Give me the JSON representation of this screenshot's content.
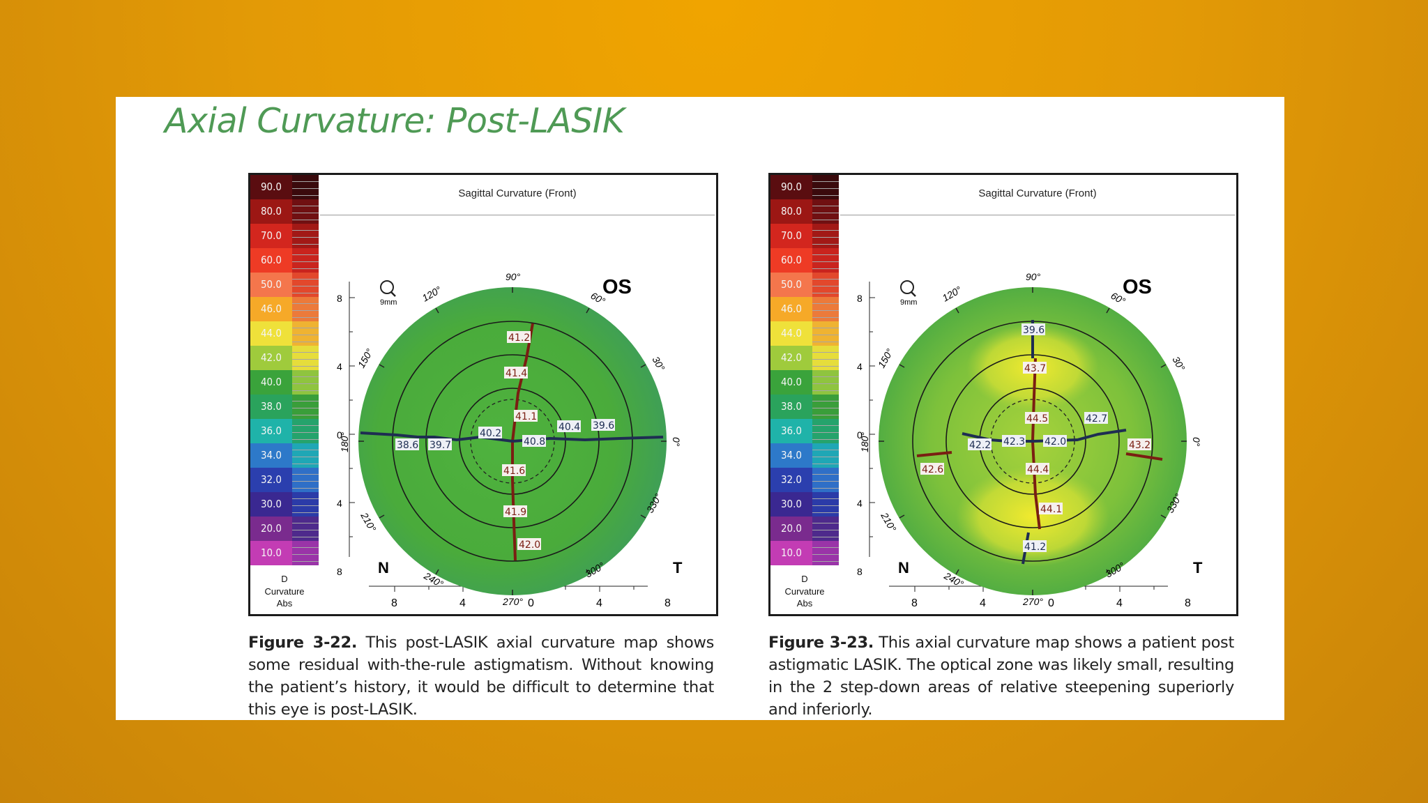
{
  "slide": {
    "title": "Axial Curvature: Post-LASIK"
  },
  "colors": {
    "background": "#e69c05",
    "title": "#4f9a55",
    "map_green": "#4caf3a",
    "meridian_red": "#7a1e12",
    "meridian_blue": "#1e2d52"
  },
  "scale": {
    "cells": [
      {
        "label": "90.0",
        "color": "#5a0d10"
      },
      {
        "label": "80.0",
        "color": "#9c1714"
      },
      {
        "label": "70.0",
        "color": "#d3261e"
      },
      {
        "label": "60.0",
        "color": "#ee3b25"
      },
      {
        "label": "50.0",
        "color": "#f4764c"
      },
      {
        "label": "46.0",
        "color": "#f6a928"
      },
      {
        "label": "44.0",
        "color": "#efe13a"
      },
      {
        "label": "42.0",
        "color": "#9fcb3c"
      },
      {
        "label": "40.0",
        "color": "#3aa33b"
      },
      {
        "label": "38.0",
        "color": "#2aa35c"
      },
      {
        "label": "36.0",
        "color": "#1fb3a9"
      },
      {
        "label": "34.0",
        "color": "#2d79c9"
      },
      {
        "label": "32.0",
        "color": "#2b3fae"
      },
      {
        "label": "30.0",
        "color": "#3a2891"
      },
      {
        "label": "20.0",
        "color": "#7a2b8e"
      },
      {
        "label": "10.0",
        "color": "#c33cb4"
      }
    ]
  },
  "figures": [
    {
      "header": "Sagittal Curvature (Front)",
      "unit": "D",
      "scale_caption": "Curvature",
      "scale_mode": "Abs",
      "eye": "OS",
      "nasal": "N",
      "temporal": "T",
      "zoom": "9mm",
      "angles": [
        "90°",
        "60°",
        "30°",
        "0°",
        "330°",
        "300°",
        "270°",
        "240°",
        "210°",
        "180°",
        "150°",
        "120°"
      ],
      "y_ticks": [
        "8",
        "4",
        "0",
        "4",
        "8"
      ],
      "x_ticks": [
        "8",
        "4",
        "0",
        "4",
        "8"
      ],
      "values": {
        "v1": "41.2",
        "v2": "41.4",
        "v3": "41.1",
        "v4": "40.2",
        "v5": "40.8",
        "v6": "40.4",
        "v7": "39.6",
        "v8": "38.6",
        "v9": "39.7",
        "v10": "41.6",
        "v11": "41.9",
        "v12": "42.0"
      },
      "caption_label": "Figure 3-22.",
      "caption_text": " This post-LASIK axial curvature map shows some residual with-the-rule astigmatism. Without knowing the patient’s history, it would be difficult to determine that this eye is post-LASIK."
    },
    {
      "header": "Sagittal Curvature (Front)",
      "unit": "D",
      "scale_caption": "Curvature",
      "scale_mode": "Abs",
      "eye": "OS",
      "nasal": "N",
      "temporal": "T",
      "zoom": "9mm",
      "angles": [
        "90°",
        "60°",
        "30°",
        "0°",
        "330°",
        "300°",
        "270°",
        "240°",
        "210°",
        "180°",
        "150°",
        "120°"
      ],
      "y_ticks": [
        "8",
        "4",
        "0",
        "4",
        "8"
      ],
      "x_ticks": [
        "8",
        "4",
        "0",
        "4",
        "8"
      ],
      "values": {
        "v1": "39.6",
        "v2": "43.7",
        "v3": "44.5",
        "v4": "42.7",
        "v5": "42.2",
        "v6": "42.3",
        "v7": "42.0",
        "v8": "43.2",
        "v9": "42.6",
        "v10": "44.4",
        "v11": "44.1",
        "v12": "41.2"
      },
      "caption_label": "Figure 3-23.",
      "caption_text": " This axial curvature map shows a patient post astigmatic LASIK. The optical zone was likely small, resulting in the 2 step-down areas of relative steepening superiorly and inferiorly."
    }
  ]
}
